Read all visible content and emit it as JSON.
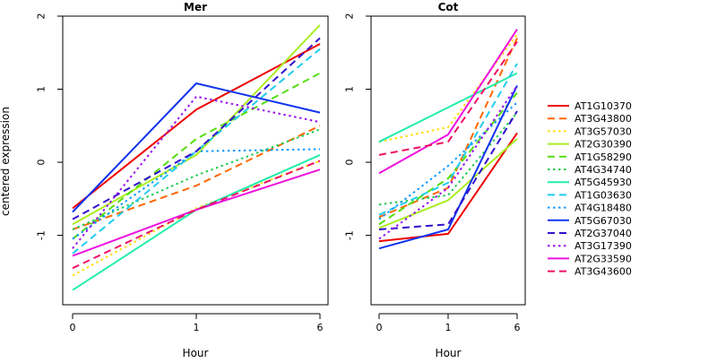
{
  "chart_data": {
    "type": "line",
    "ylabel": "centered expression",
    "xlabel": "Hour",
    "x": [
      "0",
      "1",
      "6"
    ],
    "ylim": [
      -1.95,
      2.0
    ],
    "yticks": [
      -1,
      0,
      1,
      2
    ],
    "grid": false,
    "legend_position": "right",
    "series_style": [
      {
        "name": "AT1G10370",
        "color": "#ee0000",
        "dash": "solid"
      },
      {
        "name": "AT3G43800",
        "color": "#ff6600",
        "dash": "dashed"
      },
      {
        "name": "AT3G57030",
        "color": "#ffdd00",
        "dash": "dotted"
      },
      {
        "name": "AT2G30390",
        "color": "#aaee22",
        "dash": "solid"
      },
      {
        "name": "AT1G58290",
        "color": "#55dd11",
        "dash": "dashed"
      },
      {
        "name": "AT4G34740",
        "color": "#22cc55",
        "dash": "dotted"
      },
      {
        "name": "AT5G45930",
        "color": "#22eeaa",
        "dash": "solid"
      },
      {
        "name": "AT1G03630",
        "color": "#22ccee",
        "dash": "dashed"
      },
      {
        "name": "AT4G18480",
        "color": "#1199ff",
        "dash": "dotted"
      },
      {
        "name": "AT5G67030",
        "color": "#1133ee",
        "dash": "solid"
      },
      {
        "name": "AT2G37040",
        "color": "#3311cc",
        "dash": "dashed"
      },
      {
        "name": "AT3G17390",
        "color": "#9911ee",
        "dash": "dotted"
      },
      {
        "name": "AT2G33590",
        "color": "#ee11dd",
        "dash": "solid"
      },
      {
        "name": "AT3G43600",
        "color": "#ee1166",
        "dash": "dashed"
      }
    ],
    "panels": [
      {
        "title": "Mer",
        "series": [
          {
            "name": "AT1G10370",
            "values": [
              -0.63,
              0.72,
              1.62
            ]
          },
          {
            "name": "AT3G43800",
            "values": [
              -0.92,
              -0.32,
              0.5
            ]
          },
          {
            "name": "AT3G57030",
            "values": [
              -1.55,
              -0.63,
              0.02
            ]
          },
          {
            "name": "AT2G30390",
            "values": [
              -0.85,
              0.1,
              1.88
            ]
          },
          {
            "name": "AT1G58290",
            "values": [
              -1.05,
              0.32,
              1.22
            ]
          },
          {
            "name": "AT4G34740",
            "values": [
              -0.92,
              -0.18,
              0.45
            ]
          },
          {
            "name": "AT5G45930",
            "values": [
              -1.75,
              -0.65,
              0.1
            ]
          },
          {
            "name": "AT1G03630",
            "values": [
              -1.25,
              0.15,
              1.55
            ]
          },
          {
            "name": "AT4G18480",
            "values": [
              -1.05,
              0.15,
              0.18
            ]
          },
          {
            "name": "AT5G67030",
            "values": [
              -0.68,
              1.08,
              0.68
            ]
          },
          {
            "name": "AT2G37040",
            "values": [
              -0.78,
              0.15,
              1.7
            ]
          },
          {
            "name": "AT3G17390",
            "values": [
              -1.18,
              0.9,
              0.55
            ]
          },
          {
            "name": "AT2G33590",
            "values": [
              -1.28,
              -0.65,
              -0.1
            ]
          },
          {
            "name": "AT3G43600",
            "values": [
              -1.45,
              -0.65,
              0.02
            ]
          }
        ]
      },
      {
        "title": "Cot",
        "series": [
          {
            "name": "AT1G10370",
            "values": [
              -1.08,
              -0.98,
              0.4
            ]
          },
          {
            "name": "AT3G43800",
            "values": [
              -0.75,
              -0.35,
              1.7
            ]
          },
          {
            "name": "AT3G57030",
            "values": [
              0.28,
              0.48,
              1.75
            ]
          },
          {
            "name": "AT2G30390",
            "values": [
              -0.9,
              -0.52,
              0.32
            ]
          },
          {
            "name": "AT1G58290",
            "values": [
              -0.85,
              -0.22,
              0.95
            ]
          },
          {
            "name": "AT4G34740",
            "values": [
              -0.58,
              -0.45,
              0.68
            ]
          },
          {
            "name": "AT5G45930",
            "values": [
              0.28,
              0.75,
              1.22
            ]
          },
          {
            "name": "AT1G03630",
            "values": [
              -0.72,
              -0.28,
              1.35
            ]
          },
          {
            "name": "AT4G18480",
            "values": [
              -0.78,
              -0.05,
              0.82
            ]
          },
          {
            "name": "AT5G67030",
            "values": [
              -1.18,
              -0.92,
              1.05
            ]
          },
          {
            "name": "AT2G37040",
            "values": [
              -0.92,
              -0.85,
              0.7
            ]
          },
          {
            "name": "AT3G17390",
            "values": [
              -1.05,
              -0.35,
              1.05
            ]
          },
          {
            "name": "AT2G33590",
            "values": [
              -0.15,
              0.38,
              1.82
            ]
          },
          {
            "name": "AT3G43600",
            "values": [
              0.1,
              0.28,
              1.65
            ]
          }
        ]
      }
    ]
  }
}
